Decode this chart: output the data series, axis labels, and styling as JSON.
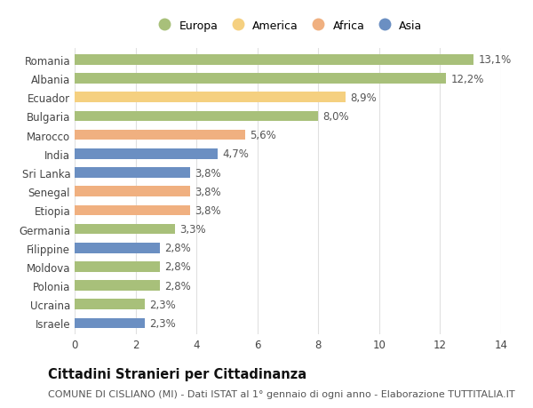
{
  "categories": [
    "Romania",
    "Albania",
    "Ecuador",
    "Bulgaria",
    "Marocco",
    "India",
    "Sri Lanka",
    "Senegal",
    "Etiopia",
    "Germania",
    "Filippine",
    "Moldova",
    "Polonia",
    "Ucraina",
    "Israele"
  ],
  "values": [
    13.1,
    12.2,
    8.9,
    8.0,
    5.6,
    4.7,
    3.8,
    3.8,
    3.8,
    3.3,
    2.8,
    2.8,
    2.8,
    2.3,
    2.3
  ],
  "continents": [
    "Europa",
    "Europa",
    "America",
    "Europa",
    "Africa",
    "Asia",
    "Asia",
    "Africa",
    "Africa",
    "Europa",
    "Asia",
    "Europa",
    "Europa",
    "Europa",
    "Asia"
  ],
  "continent_colors": {
    "Europa": "#a8c07a",
    "America": "#f5d080",
    "Africa": "#f0b080",
    "Asia": "#6b8fc2"
  },
  "legend_order": [
    "Europa",
    "America",
    "Africa",
    "Asia"
  ],
  "title": "Cittadini Stranieri per Cittadinanza",
  "subtitle": "COMUNE DI CISLIANO (MI) - Dati ISTAT al 1° gennaio di ogni anno - Elaborazione TUTTITALIA.IT",
  "xlim": [
    0,
    14
  ],
  "xticks": [
    0,
    2,
    4,
    6,
    8,
    10,
    12,
    14
  ],
  "background_color": "#ffffff",
  "grid_color": "#e0e0e0",
  "bar_height": 0.55,
  "label_fontsize": 8.5,
  "title_fontsize": 10.5,
  "subtitle_fontsize": 8,
  "tick_fontsize": 8.5,
  "legend_fontsize": 9
}
